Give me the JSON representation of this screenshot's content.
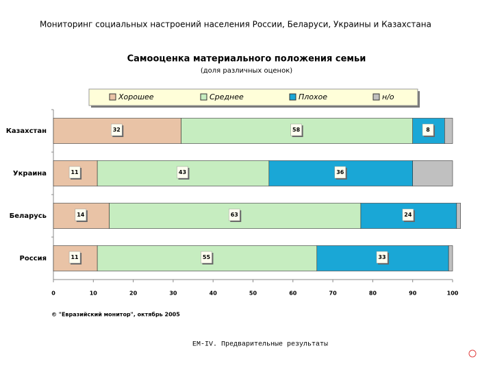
{
  "header": {
    "title": "Мониторинг социальных настроений населения России, Беларуси, Украины и Казахстана"
  },
  "chart_data": {
    "type": "stacked-barh",
    "title": "Самооценка материального положения семьи",
    "subtitle": "(доля различных оценок)",
    "categories": [
      "Казахстан",
      "Украина",
      "Беларусь",
      "Россия"
    ],
    "series": [
      {
        "name": "Хорошее",
        "color": "#e9c3a6",
        "values": [
          32,
          11,
          14,
          11
        ]
      },
      {
        "name": "Среднее",
        "color": "#c6edc0",
        "values": [
          58,
          43,
          63,
          55
        ]
      },
      {
        "name": "Плохое",
        "color": "#1aa7d6",
        "values": [
          8,
          36,
          24,
          33
        ]
      },
      {
        "name": "н/о",
        "color": "#c0c0c0",
        "values": [
          2,
          10,
          1,
          1
        ]
      }
    ],
    "xlim": [
      0,
      100
    ],
    "xticks": [
      0,
      10,
      20,
      30,
      40,
      50,
      60,
      70,
      80,
      90,
      100
    ],
    "legend": "top",
    "data_labels": [
      true,
      true,
      true,
      false
    ],
    "source": "© \"Евразийский монитор\", октябрь 2005"
  },
  "footer": {
    "text": "EM-IV. Предварительные результаты"
  }
}
